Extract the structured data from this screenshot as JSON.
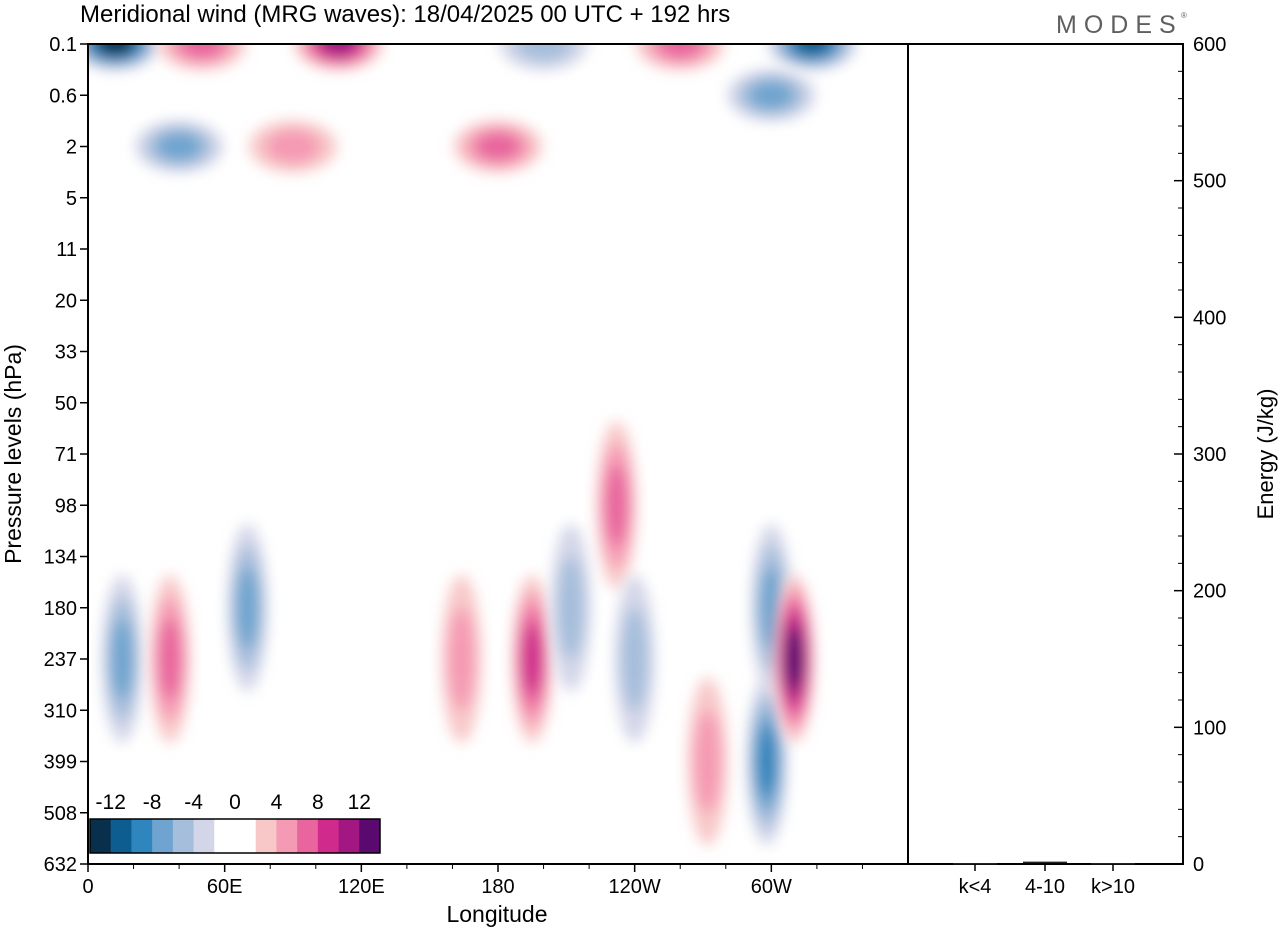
{
  "title": "Meridional wind (MRG waves):  18/04/2025  00 UTC  + 192 hrs",
  "brand": "MODES",
  "brand_mark": "®",
  "chart_data": [
    {
      "type": "heatmap",
      "title": "Meridional wind (MRG waves):  18/04/2025  00 UTC  + 192 hrs",
      "xlabel": "Longitude",
      "ylabel": "Pressure levels (hPa)",
      "x_ticks": [
        "0",
        "60E",
        "120E",
        "180",
        "120W",
        "60W"
      ],
      "y_ticks": [
        "0.1",
        "0.6",
        "2",
        "5",
        "11",
        "20",
        "33",
        "50",
        "71",
        "98",
        "134",
        "180",
        "237",
        "310",
        "399",
        "508",
        "632"
      ],
      "y_reversed": true,
      "colorbar": {
        "labels": [
          "-12",
          "-8",
          "-4",
          "0",
          "4",
          "8",
          "12"
        ],
        "levels": [
          -14,
          -12,
          -10,
          -8,
          -6,
          -4,
          -2,
          0,
          2,
          4,
          6,
          8,
          10,
          12,
          14
        ],
        "colors": [
          "#08304d",
          "#0d5d90",
          "#2f85bd",
          "#6ea4cf",
          "#a5bedb",
          "#d3d6e8",
          "#ffffff",
          "#ffffff",
          "#f8c8c8",
          "#f59ab4",
          "#e8659e",
          "#cf2a8c",
          "#a21781",
          "#5a0a6e"
        ]
      },
      "features": [
        {
          "lon": 12,
          "level": "0.1",
          "value": -12
        },
        {
          "lon": 50,
          "level": "0.1",
          "value": 6
        },
        {
          "lon": 110,
          "level": "0.1",
          "value": 10
        },
        {
          "lon": 200,
          "level": "0.1",
          "value": -4
        },
        {
          "lon": 260,
          "level": "0.1",
          "value": 6
        },
        {
          "lon": 318,
          "level": "0.1",
          "value": -10
        },
        {
          "lon": 40,
          "level": "2",
          "value": -6
        },
        {
          "lon": 90,
          "level": "2",
          "value": 4
        },
        {
          "lon": 180,
          "level": "2",
          "value": 6
        },
        {
          "lon": 300,
          "level": "0.6",
          "value": -6
        },
        {
          "lon": 232,
          "level": "98",
          "value": 6
        },
        {
          "lon": 15,
          "level": "237",
          "value": -6
        },
        {
          "lon": 36,
          "level": "237",
          "value": 6
        },
        {
          "lon": 70,
          "level": "180",
          "value": -6
        },
        {
          "lon": 164,
          "level": "237",
          "value": 4
        },
        {
          "lon": 195,
          "level": "237",
          "value": 8
        },
        {
          "lon": 212,
          "level": "180",
          "value": -4
        },
        {
          "lon": 240,
          "level": "237",
          "value": -4
        },
        {
          "lon": 272,
          "level": "399",
          "value": 4
        },
        {
          "lon": 298,
          "level": "399",
          "value": -8
        },
        {
          "lon": 300,
          "level": "180",
          "value": -6
        },
        {
          "lon": 310,
          "level": "237",
          "value": 12
        }
      ]
    },
    {
      "type": "bar",
      "ylabel": "Energy (J/kg)",
      "categories": [
        "k<4",
        "4-10",
        "k>10"
      ],
      "values": [
        0,
        1,
        0
      ],
      "ylim": [
        0,
        600
      ],
      "y_ticks": [
        "0",
        "100",
        "200",
        "300",
        "400",
        "500",
        "600"
      ]
    }
  ]
}
